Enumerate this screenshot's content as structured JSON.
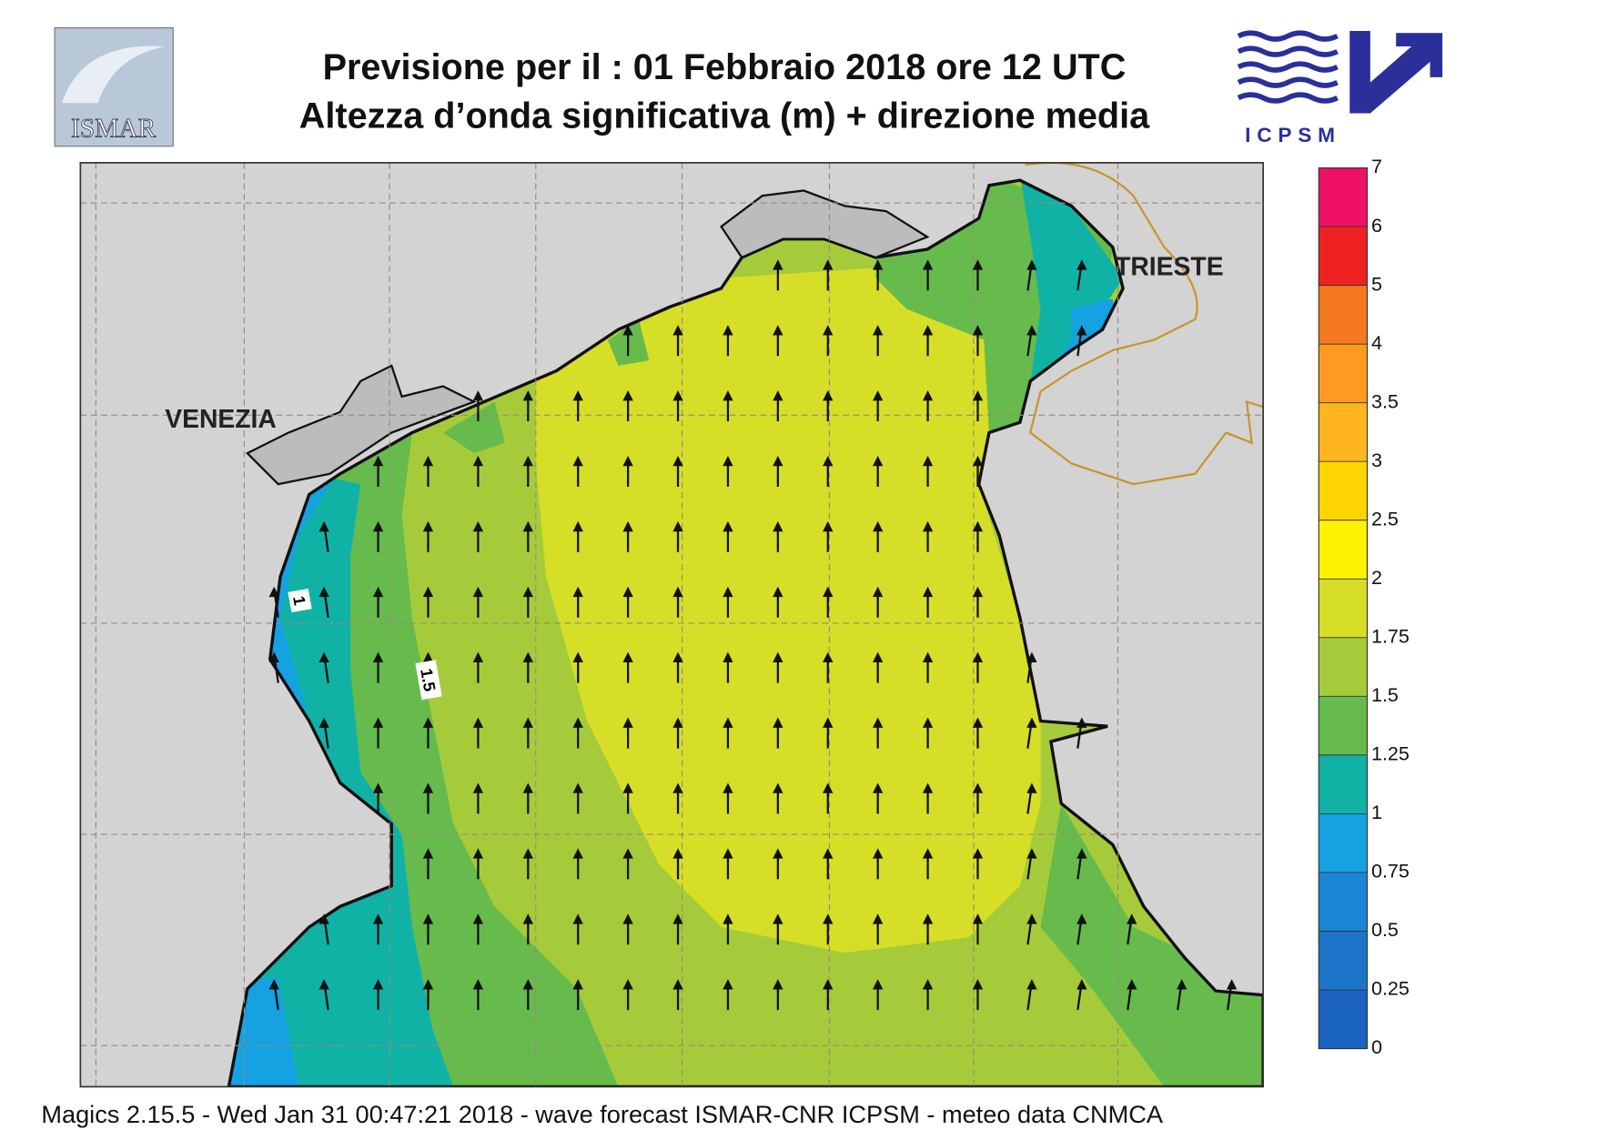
{
  "header": {
    "title_line1": "Previsione per il  :  01  Febbraio 2018   ore 12 UTC",
    "title_line2": "Altezza d’onda significativa (m) + direzione media"
  },
  "logos": {
    "left": "ISMAR",
    "right": "ICPSM"
  },
  "map": {
    "place_labels": [
      "VENEZIA",
      "TRIESTE"
    ],
    "contour_labels": [
      1,
      1.5
    ]
  },
  "legend": {
    "levels": [
      0,
      0.25,
      0.5,
      0.75,
      1,
      1.25,
      1.5,
      1.75,
      2,
      2.5,
      3,
      3.5,
      4,
      5,
      6,
      7
    ],
    "colors": [
      "#1a63bf",
      "#1c74c9",
      "#1c86d4",
      "#14a2e2",
      "#10b2a6",
      "#66bb4c",
      "#a6cb3a",
      "#d6de28",
      "#fff200",
      "#ffd400",
      "#ffb61e",
      "#ff9a20",
      "#f47920",
      "#ee2222",
      "#ee1166"
    ]
  },
  "footer": "Magics 2.15.5 - Wed Jan 31 00:47:21 2018 - wave forecast  ISMAR-CNR  ICPSM - meteo data   CNMCA"
}
